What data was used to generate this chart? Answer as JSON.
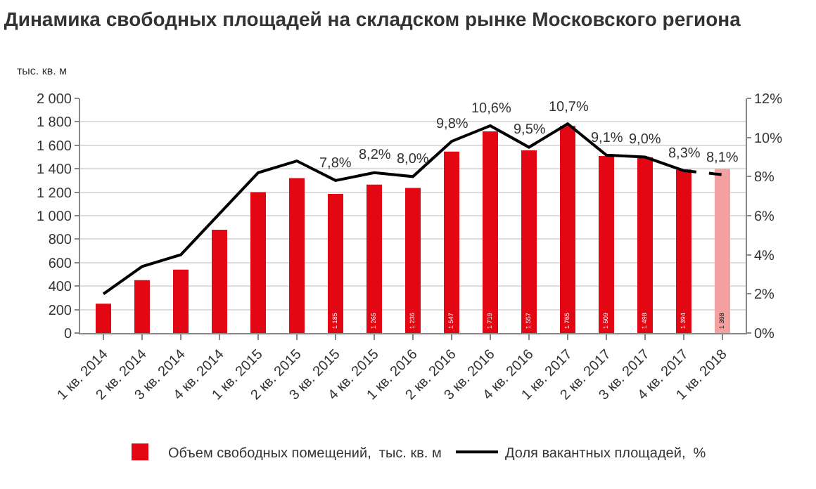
{
  "chart_data": {
    "type": "bar",
    "title": "Динамика свободных площадей на складском рынке Московского региона",
    "ylabel": "тыс. кв. м",
    "categories": [
      "1 кв. 2014",
      "2 кв. 2014",
      "3 кв. 2014",
      "4 кв. 2014",
      "1 кв. 2015",
      "2 кв. 2015",
      "3 кв. 2015",
      "4 кв. 2015",
      "1 кв. 2016",
      "2 кв. 2016",
      "3 кв. 2016",
      "4 кв. 2016",
      "1 кв. 2017",
      "2 кв. 2017",
      "3 кв. 2017",
      "4 кв. 2017",
      "1 кв. 2018"
    ],
    "series": [
      {
        "name": "Объем свободных помещений,  тыс. кв. м",
        "colors": [
          "#e30613",
          "#e30613",
          "#e30613",
          "#e30613",
          "#e30613",
          "#e30613",
          "#e30613",
          "#e30613",
          "#e30613",
          "#e30613",
          "#e30613",
          "#e30613",
          "#e30613",
          "#e30613",
          "#e30613",
          "#e30613",
          "#f2a0a0"
        ],
        "values": [
          250,
          450,
          540,
          880,
          1200,
          1320,
          1185,
          1265,
          1236,
          1547,
          1719,
          1557,
          1765,
          1509,
          1498,
          1394,
          1398
        ],
        "value_labels": [
          null,
          null,
          null,
          null,
          null,
          null,
          "1 185",
          "1 265",
          "1 236",
          "1 547",
          "1 719",
          "1 557",
          "1 765",
          "1 509",
          "1 498",
          "1 394",
          "1 398"
        ]
      },
      {
        "name": "Доля вакантных площадей,  %",
        "type": "line",
        "axis": "y2",
        "color": "#000000",
        "line_style": "solid",
        "values": [
          2.0,
          3.4,
          4.0,
          6.1,
          8.2,
          8.8,
          7.8,
          8.2,
          8.0,
          9.8,
          10.6,
          9.5,
          10.7,
          9.1,
          9.0,
          8.3,
          null
        ],
        "value_labels": [
          null,
          null,
          null,
          null,
          null,
          null,
          "7,8%",
          "8,2%",
          "8,0%",
          "9,8%",
          "10,6%",
          "9,5%",
          "10,7%",
          "9,1%",
          "9,0%",
          "8,3%",
          null
        ]
      },
      {
        "type": "line",
        "axis": "y2",
        "color": "#000000",
        "line_style": "dashed",
        "values": [
          null,
          null,
          null,
          null,
          null,
          null,
          null,
          null,
          null,
          null,
          null,
          null,
          null,
          null,
          null,
          8.3,
          8.1
        ],
        "value_labels": [
          null,
          null,
          null,
          null,
          null,
          null,
          null,
          null,
          null,
          null,
          null,
          null,
          null,
          null,
          null,
          null,
          "8,1%"
        ]
      }
    ],
    "ylim": [
      0,
      2000
    ],
    "yticks": [
      0,
      200,
      400,
      600,
      800,
      {
        "value": 1000,
        "label": "1 000"
      },
      {
        "value": 1200,
        "label": "1 200"
      },
      {
        "value": 1400,
        "label": "1 400"
      },
      {
        "value": 1600,
        "label": "1 600"
      },
      {
        "value": 1800,
        "label": "1 800"
      },
      {
        "value": 2000,
        "label": "2 000"
      }
    ],
    "y2lim": [
      0,
      12
    ],
    "y2ticks": [
      {
        "value": 0,
        "label": "0%"
      },
      {
        "value": 2,
        "label": "2%"
      },
      {
        "value": 4,
        "label": "4%"
      },
      {
        "value": 6,
        "label": "6%"
      },
      {
        "value": 8,
        "label": "8%"
      },
      {
        "value": 10,
        "label": "10%"
      },
      {
        "value": 12,
        "label": "12%"
      }
    ],
    "grid": "y",
    "legend": "bottom",
    "marker": "none"
  }
}
